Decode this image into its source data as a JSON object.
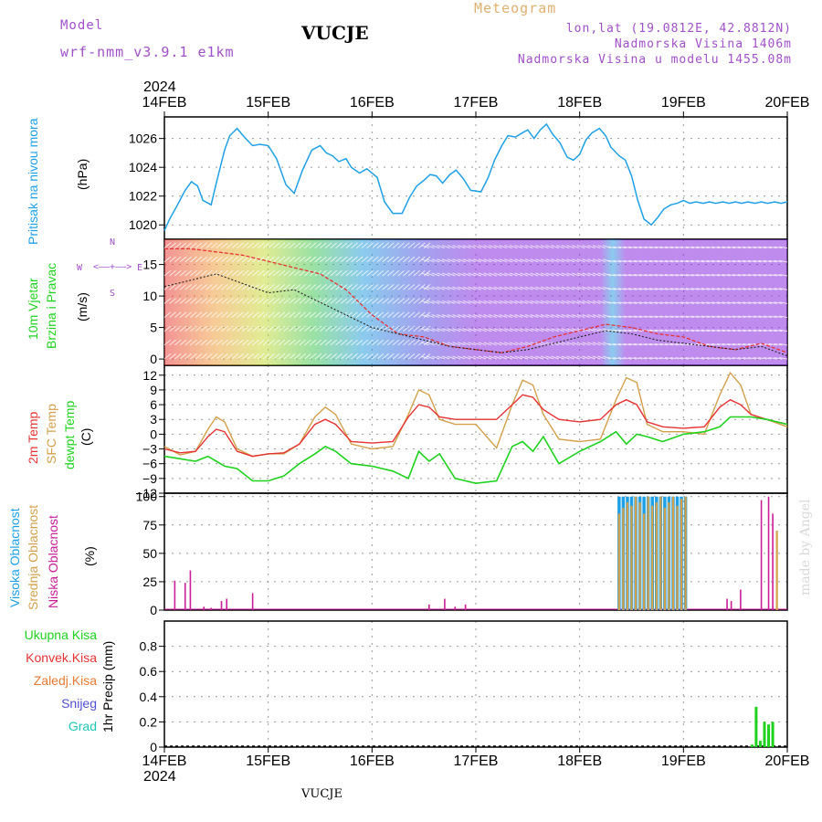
{
  "header": {
    "model_label": "Model",
    "model_value": "wrf-nmm_v3.9.1 e1km",
    "station": "VUCJE",
    "product": "Meteogram",
    "coords": "lon,lat (19.0812E, 42.8812N)",
    "elevation": "Nadmorska Visina 1406m",
    "model_elevation": "Nadmorska Visina u modelu 1455.08m"
  },
  "footer": {
    "station": "VUCJE",
    "credit": "made by Angel"
  },
  "colors": {
    "pressure": "#1ea0e6",
    "t2m": "#e63232",
    "sfc": "#d2a04b",
    "dew": "#1ed21e",
    "high_cloud": "#1ea0e6",
    "mid_cloud": "#d2a04b",
    "low_cloud": "#c81e96",
    "precip_total": "#1ed21e",
    "axis_title_blue": "#1ea0e6",
    "axis_title_green": "#1ed21e"
  },
  "time_axis": {
    "year": "2024",
    "ticks": [
      "14FEB",
      "15FEB",
      "16FEB",
      "17FEB",
      "18FEB",
      "19FEB",
      "20FEB"
    ]
  },
  "chart_data": [
    {
      "type": "line",
      "name": "pressure",
      "ylabel_parts": [
        "Pritisak na nivou mora",
        "(hPa)"
      ],
      "ylim": [
        1019,
        1027.5
      ],
      "yticks": [
        "1020",
        "1022",
        "1024",
        "1026"
      ],
      "grid": true,
      "x_days": [
        0,
        0.05,
        0.12,
        0.2,
        0.26,
        0.32,
        0.37,
        0.45,
        0.5,
        0.58,
        0.63,
        0.7,
        0.77,
        0.85,
        0.92,
        1.0,
        1.08,
        1.17,
        1.25,
        1.33,
        1.42,
        1.5,
        1.56,
        1.62,
        1.68,
        1.75,
        1.8,
        1.88,
        1.95,
        2.05,
        2.12,
        2.2,
        2.29,
        2.36,
        2.43,
        2.5,
        2.56,
        2.62,
        2.68,
        2.75,
        2.81,
        2.88,
        2.95,
        3.05,
        3.12,
        3.18,
        3.25,
        3.31,
        3.38,
        3.45,
        3.5,
        3.56,
        3.62,
        3.68,
        3.74,
        3.81,
        3.88,
        3.94,
        4.0,
        4.06,
        4.12,
        4.19,
        4.25,
        4.3,
        4.38,
        4.44,
        4.5,
        4.56,
        4.62,
        4.69,
        4.75,
        4.81,
        4.88,
        4.94,
        5.0,
        5.06,
        5.12,
        5.19,
        5.25,
        5.31,
        5.38,
        5.44,
        5.5,
        5.56,
        5.62,
        5.69,
        5.75,
        5.81,
        5.88,
        5.94,
        6.0
      ],
      "series": [
        {
          "values": [
            1019.6,
            1020.4,
            1021.3,
            1022.4,
            1023.0,
            1022.7,
            1021.7,
            1021.4,
            1022.9,
            1025.2,
            1026.2,
            1026.7,
            1026.1,
            1025.5,
            1025.6,
            1025.5,
            1024.6,
            1022.8,
            1022.2,
            1023.8,
            1025.2,
            1025.5,
            1025.0,
            1024.8,
            1024.4,
            1024.6,
            1024.0,
            1023.6,
            1023.9,
            1023.3,
            1021.6,
            1020.8,
            1020.8,
            1021.9,
            1022.7,
            1023.1,
            1023.5,
            1023.4,
            1022.9,
            1023.5,
            1023.8,
            1023.2,
            1022.4,
            1022.3,
            1023.3,
            1024.5,
            1025.5,
            1026.2,
            1026.1,
            1026.4,
            1026.6,
            1026.0,
            1026.6,
            1027.0,
            1026.3,
            1025.7,
            1024.7,
            1024.5,
            1024.9,
            1025.9,
            1026.4,
            1026.7,
            1026.2,
            1025.4,
            1024.8,
            1024.5,
            1023.4,
            1021.7,
            1020.4,
            1020.0,
            1020.5,
            1021.1,
            1021.4,
            1021.5,
            1021.7,
            1021.5,
            1021.6,
            1021.5,
            1021.6,
            1021.5,
            1021.6,
            1021.5,
            1021.6,
            1021.5,
            1021.6,
            1021.5,
            1021.6,
            1021.5,
            1021.6,
            1021.5,
            1021.6
          ]
        }
      ]
    },
    {
      "type": "line",
      "name": "wind",
      "ylabel_parts": [
        "10m Vjetar",
        "Brzina i Pravac",
        "(m/s)"
      ],
      "compass_labels": [
        "N",
        "W",
        "E",
        "S"
      ],
      "ylim": [
        -1,
        19
      ],
      "yticks": [
        "0",
        "5",
        "10",
        "15"
      ],
      "grid": true,
      "x_days": [
        0,
        0.25,
        0.5,
        0.75,
        1.0,
        1.25,
        1.5,
        1.75,
        2.0,
        2.25,
        2.5,
        2.75,
        3.0,
        3.25,
        3.5,
        3.75,
        4.0,
        4.25,
        4.5,
        4.75,
        5.0,
        5.25,
        5.5,
        5.75,
        6.0
      ],
      "series": [
        {
          "values": [
            17.5,
            17.5,
            17.0,
            16.5,
            15.5,
            14.5,
            13.5,
            11.0,
            7.0,
            4.0,
            3.5,
            2.0,
            1.5,
            1.0,
            2.0,
            3.5,
            4.5,
            5.5,
            5.0,
            4.0,
            3.5,
            2.0,
            1.5,
            2.5,
            1.0
          ]
        },
        {
          "values": [
            11.5,
            12.5,
            13.5,
            12.0,
            10.5,
            11.0,
            9.0,
            7.0,
            5.0,
            4.0,
            3.0,
            2.0,
            1.5,
            1.0,
            1.5,
            2.5,
            3.5,
            4.5,
            4.0,
            3.0,
            2.5,
            2.0,
            1.5,
            2.0,
            0.5
          ]
        }
      ]
    },
    {
      "type": "line",
      "name": "temperature",
      "ylabel_parts": [
        "2m Temp",
        "SFC Temp",
        "dewpt Temp",
        "(C)"
      ],
      "ylim": [
        -12,
        14
      ],
      "yticks": [
        "−12",
        "−9",
        "−6",
        "−3",
        "0",
        "3",
        "6",
        "9",
        "12"
      ],
      "grid": true,
      "x_days": [
        0,
        0.15,
        0.3,
        0.42,
        0.5,
        0.58,
        0.7,
        0.85,
        1.0,
        1.15,
        1.3,
        1.45,
        1.55,
        1.65,
        1.8,
        2.0,
        2.2,
        2.35,
        2.45,
        2.55,
        2.65,
        2.8,
        3.0,
        3.2,
        3.35,
        3.45,
        3.55,
        3.65,
        3.8,
        4.0,
        4.2,
        4.35,
        4.45,
        4.55,
        4.65,
        4.8,
        5.0,
        5.2,
        5.35,
        5.45,
        5.55,
        5.65,
        5.8,
        6.0
      ],
      "series": [
        {
          "values": [
            -3.0,
            -3.8,
            -3.5,
            -0.5,
            1.0,
            0.5,
            -3.5,
            -4.5,
            -4.0,
            -3.8,
            -2.0,
            2.0,
            3.0,
            2.0,
            -1.5,
            -1.8,
            -1.5,
            3.5,
            6.0,
            5.5,
            3.5,
            3.0,
            3.0,
            3.0,
            6.0,
            8.0,
            7.5,
            5.0,
            3.0,
            2.5,
            3.0,
            6.0,
            7.0,
            6.0,
            2.5,
            1.5,
            1.2,
            1.5,
            5.5,
            7.0,
            6.0,
            4.0,
            3.0,
            2.0
          ]
        },
        {
          "values": [
            -2.5,
            -4.2,
            -3.5,
            1.0,
            3.5,
            2.5,
            -3.0,
            -4.5,
            -4.0,
            -4.0,
            -2.0,
            3.5,
            5.5,
            4.0,
            -2.0,
            -3.0,
            -2.5,
            4.0,
            9.0,
            8.0,
            3.0,
            2.0,
            2.0,
            -2.8,
            6.0,
            11.0,
            10.0,
            4.0,
            -1.0,
            -1.5,
            -1.0,
            7.0,
            11.5,
            10.5,
            2.0,
            0.5,
            0.5,
            0.0,
            8.0,
            12.5,
            10.0,
            4.0,
            3.0,
            1.5
          ]
        },
        {
          "values": [
            -4.5,
            -5.0,
            -5.5,
            -4.5,
            -5.5,
            -6.5,
            -7.0,
            -9.5,
            -9.5,
            -8.5,
            -6.0,
            -4.0,
            -2.5,
            -3.5,
            -6.0,
            -6.5,
            -7.5,
            -9.0,
            -3.5,
            -5.5,
            -4.0,
            -9.0,
            -10.0,
            -9.5,
            -2.5,
            -1.5,
            -3.5,
            -0.5,
            -6.0,
            -3.5,
            -1.5,
            0.5,
            -2.0,
            0.0,
            -0.5,
            -1.5,
            0.0,
            0.5,
            1.5,
            3.5,
            3.5,
            3.5,
            3.0,
            2.0
          ]
        }
      ]
    },
    {
      "type": "bar",
      "name": "cloud_cover",
      "ylabel_parts": [
        "Visoka Oblacnost",
        "Srednja Oblacnost",
        "Niska Oblacnost",
        "(%)"
      ],
      "ylim": [
        0,
        103
      ],
      "yticks": [
        "0",
        "25",
        "50",
        "75",
        "100"
      ],
      "grid": true,
      "series": [
        {
          "x_days": [
            4.38,
            4.42,
            4.46,
            4.5,
            4.54,
            4.58,
            4.62,
            4.66,
            4.7,
            4.74,
            4.78,
            4.82,
            4.86,
            4.9,
            4.94,
            4.98,
            5.02
          ],
          "values": [
            100,
            100,
            100,
            100,
            100,
            100,
            100,
            100,
            100,
            100,
            100,
            100,
            100,
            100,
            100,
            100,
            100
          ]
        },
        {
          "x_days": [
            4.38,
            4.42,
            4.46,
            4.5,
            4.54,
            4.58,
            4.62,
            4.66,
            4.7,
            4.74,
            4.78,
            4.82,
            4.86,
            4.9,
            4.94,
            4.98,
            5.02,
            5.9
          ],
          "values": [
            85,
            90,
            95,
            92,
            100,
            95,
            85,
            100,
            92,
            95,
            100,
            90,
            95,
            100,
            92,
            98,
            100,
            70
          ]
        },
        {
          "x_days": [
            0.1,
            0.2,
            0.25,
            0.38,
            0.45,
            0.55,
            0.6,
            0.85,
            2.55,
            2.7,
            2.8,
            2.9,
            5.42,
            5.46,
            5.55,
            5.75,
            5.82,
            5.86
          ],
          "values": [
            26,
            24,
            35,
            3,
            2,
            8,
            10,
            15,
            5,
            10,
            3,
            5,
            10,
            8,
            18,
            97,
            100,
            85
          ]
        }
      ]
    },
    {
      "type": "bar",
      "name": "precipitation",
      "ylabel_parts": [
        "1hr Precip (mm)"
      ],
      "legend": [
        "Ukupna Kisa",
        "Konvek.Kisa",
        "Zaledj.Kisa",
        "Snijeg",
        "Grad"
      ],
      "legend_colors": [
        "#1ed21e",
        "#e63232",
        "#e67a32",
        "#5050d2",
        "#1ec8b4"
      ],
      "ylim": [
        0,
        1.0
      ],
      "yticks": [
        "0",
        "0.2",
        "0.4",
        "0.6",
        "0.8"
      ],
      "grid": true,
      "series": [
        {
          "x_days": [
            5.66,
            5.7,
            5.74,
            5.78,
            5.82,
            5.86
          ],
          "values": [
            0.02,
            0.32,
            0.05,
            0.2,
            0.18,
            0.2
          ]
        }
      ]
    }
  ]
}
